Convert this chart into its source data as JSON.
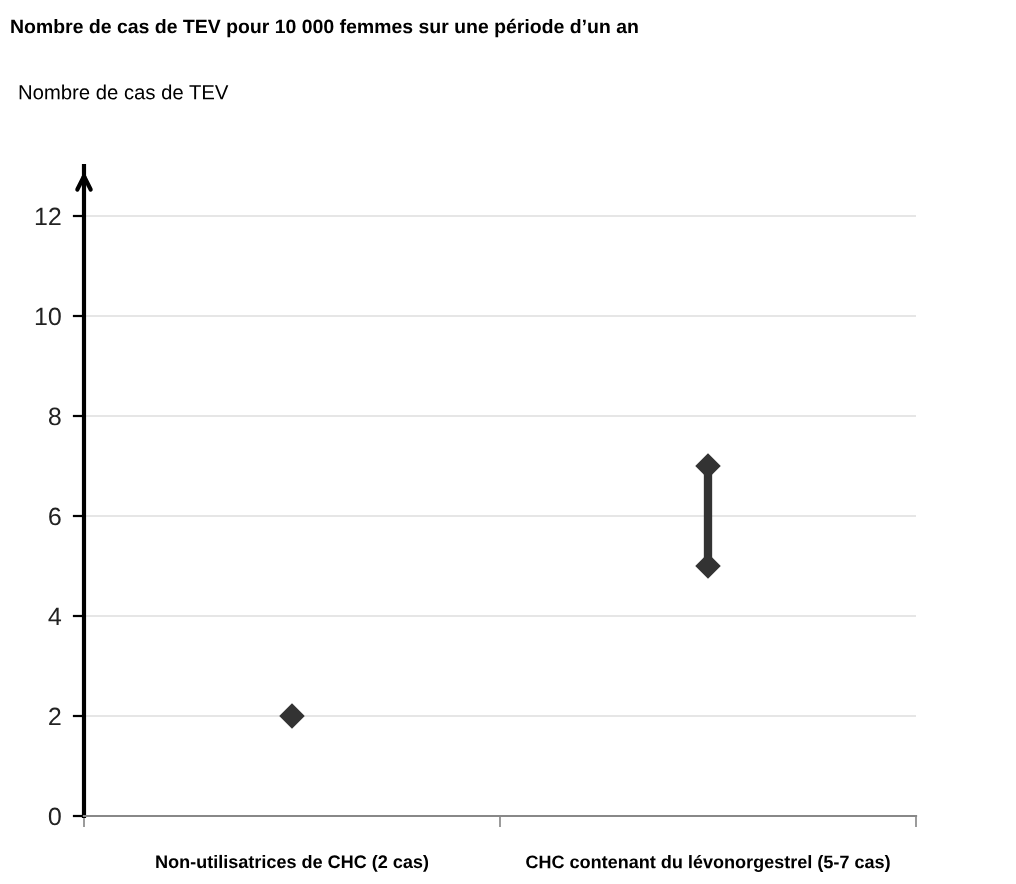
{
  "chart_data": {
    "type": "scatter",
    "title": "Nombre de cas de TEV pour 10 000 femmes sur une période d’un an",
    "ylabel": "Nombre de cas de TEV",
    "categories": [
      "Non-utilisatrices de CHC (2 cas)",
      "CHC contenant du lévonorgestrel (5-7 cas)"
    ],
    "series": [
      {
        "color": "#333333",
        "values": [
          2,
          null
        ]
      },
      {
        "type": "line",
        "color": "#333333",
        "x": [
          "CHC contenant du lévonorgestrel (5-7 cas)",
          "CHC contenant du lévonorgestrel (5-7 cas)"
        ],
        "values": [
          5,
          7
        ]
      }
    ],
    "ylim": [
      0,
      13
    ],
    "yticks": [
      0,
      2,
      4,
      6,
      8,
      10,
      12
    ],
    "grid": "y",
    "marker": "diamond"
  }
}
